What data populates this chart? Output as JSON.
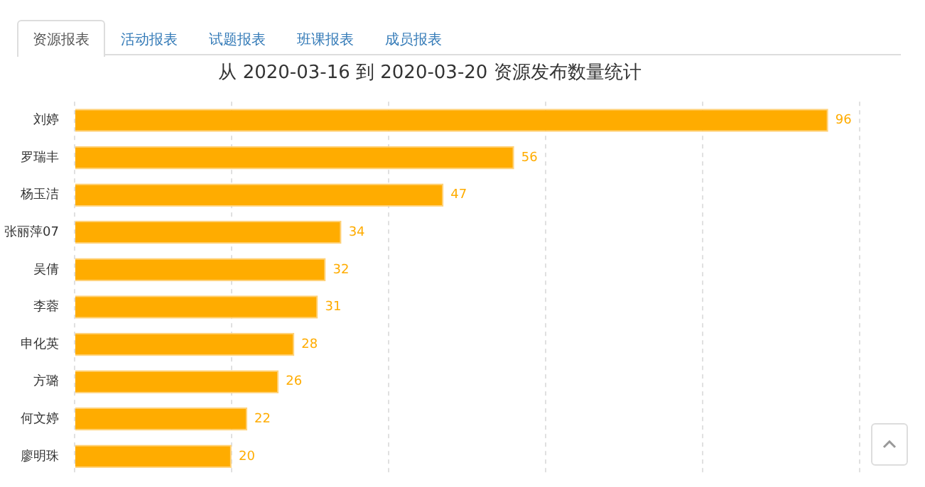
{
  "chart_data": {
    "type": "bar",
    "orientation": "horizontal",
    "title": "从 2020-03-16 到 2020-03-20 资源发布数量统计",
    "annotations": [
      "资源报表",
      "活动报表",
      "试题报表",
      "班课报表",
      "成员报表"
    ],
    "categories": [
      "刘婷",
      "罗瑞丰",
      "杨玉洁",
      "张丽萍07",
      "吴倩",
      "李蓉",
      "申化英",
      "方璐",
      "何文婷",
      "廖明珠"
    ],
    "values": [
      96,
      56,
      47,
      34,
      32,
      31,
      28,
      26,
      22,
      20
    ],
    "color": "#ffac00",
    "xlim": [
      0,
      100
    ],
    "xticks": [
      {
        "value": 0,
        "label": null
      },
      {
        "value": 20,
        "label": null
      },
      {
        "value": 40,
        "label": null
      },
      {
        "value": 60,
        "label": null
      },
      {
        "value": 80,
        "label": null
      },
      {
        "value": 100,
        "label": null
      }
    ],
    "tick_labels": "y",
    "grid": "x",
    "legend": false,
    "data_labels": true
  }
}
